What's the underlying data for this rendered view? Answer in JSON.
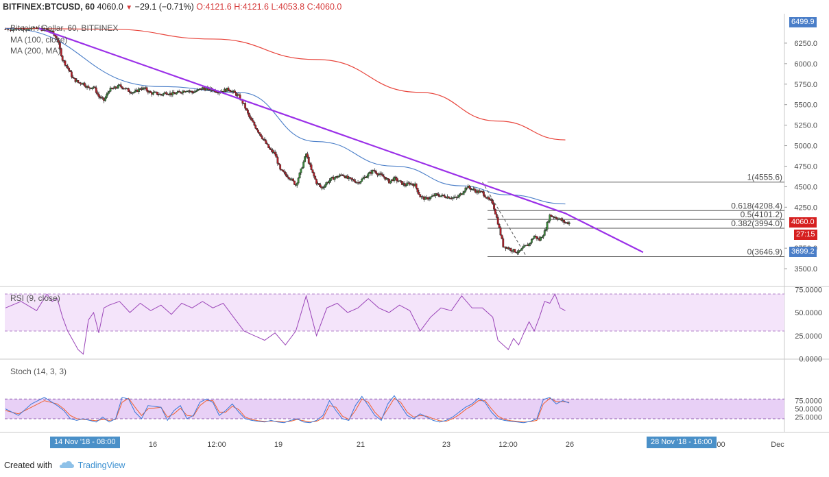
{
  "header": {
    "symbol": "BITFINEX:BTCUSD, 60",
    "last": "4060.0",
    "arrow": "▼",
    "change": "−29.1 (−0.71%)",
    "ohlc_o": "O:4121.6",
    "ohlc_h": "H:4121.6",
    "ohlc_l": "L:4053.8",
    "ohlc_c": "C:4060.0"
  },
  "legend": {
    "title": "Bitcoin / Dollar, 60, BITFINEX",
    "ma100": "MA (100, close)",
    "ma200": "MA (200, MA)"
  },
  "price_axis": {
    "ticks": [
      "6250.0",
      "6000.0",
      "5750.0",
      "5500.0",
      "5250.0",
      "5000.0",
      "4750.0",
      "4500.0",
      "4250.0",
      "3750.0",
      "3500.0"
    ],
    "top_tag": "6499.9",
    "last_tag": "4060.0",
    "countdown_tag": "27:15",
    "low_tag": "3699.2"
  },
  "time_axis": {
    "ticks": [
      "16",
      "12:00",
      "19",
      "21",
      "23",
      "12:00",
      "26",
      "Dec"
    ],
    "partial_tick": ":00",
    "start_tag": "14 Nov '18 - 08:00",
    "end_tag": "28 Nov '18 - 16:00"
  },
  "rsi": {
    "label": "RSI (9, close)",
    "ticks": [
      "75.0000",
      "50.0000",
      "25.0000",
      "0.0000"
    ],
    "upper": 70,
    "lower": 30
  },
  "stoch": {
    "label": "Stoch (14, 3, 3)",
    "ticks": [
      "75.0000",
      "50.0000",
      "25.0000"
    ],
    "upper": 80,
    "lower": 20
  },
  "footer": {
    "created": "Created with",
    "brand": "TradingView"
  },
  "colors": {
    "up": "#3d8a3d",
    "down": "#b3202a",
    "ma100": "#4a7ec8",
    "ma200": "#e8453c",
    "trendline": "#9b30e8",
    "fib": "#555555",
    "rsi": "#9a44b8",
    "stoch_k": "#3a78d8",
    "stoch_d": "#f06030",
    "rsi_band": "#f4e4fa",
    "stoch_band": "#e8d0f6"
  },
  "chart_data": {
    "type": "candlestick",
    "title": "Bitcoin / Dollar, 60, BITFINEX",
    "ylim": [
      3400,
      6550
    ],
    "x_range": [
      "14 Nov '18 - 08:00",
      "28 Nov '18 - 16:00"
    ],
    "close_path": [
      [
        0,
        6420
      ],
      [
        2,
        6420
      ],
      [
        4,
        6430
      ],
      [
        6,
        6425
      ],
      [
        8,
        6410
      ],
      [
        9,
        6380
      ],
      [
        10,
        6300
      ],
      [
        11,
        6050
      ],
      [
        12,
        5950
      ],
      [
        13,
        5820
      ],
      [
        14,
        5770
      ],
      [
        15,
        5760
      ],
      [
        16,
        5700
      ],
      [
        17,
        5720
      ],
      [
        18,
        5600
      ],
      [
        19,
        5550
      ],
      [
        20,
        5680
      ],
      [
        21,
        5700
      ],
      [
        22,
        5730
      ],
      [
        23,
        5700
      ],
      [
        24,
        5660
      ],
      [
        25,
        5650
      ],
      [
        26,
        5700
      ],
      [
        27,
        5690
      ],
      [
        28,
        5640
      ],
      [
        29,
        5640
      ],
      [
        30,
        5620
      ],
      [
        31,
        5650
      ],
      [
        32,
        5630
      ],
      [
        33,
        5640
      ],
      [
        34,
        5660
      ],
      [
        35,
        5680
      ],
      [
        36,
        5650
      ],
      [
        37,
        5670
      ],
      [
        38,
        5700
      ],
      [
        39,
        5690
      ],
      [
        40,
        5680
      ],
      [
        41,
        5660
      ],
      [
        42,
        5670
      ],
      [
        43,
        5690
      ],
      [
        44,
        5650
      ],
      [
        45,
        5600
      ],
      [
        46,
        5500
      ],
      [
        47,
        5350
      ],
      [
        48,
        5250
      ],
      [
        49,
        5150
      ],
      [
        50,
        5050
      ],
      [
        51,
        4950
      ],
      [
        52,
        4900
      ],
      [
        53,
        4700
      ],
      [
        54,
        4650
      ],
      [
        55,
        4600
      ],
      [
        56,
        4520
      ],
      [
        57,
        4700
      ],
      [
        58,
        4900
      ],
      [
        59,
        4700
      ],
      [
        60,
        4550
      ],
      [
        61,
        4480
      ],
      [
        62,
        4550
      ],
      [
        63,
        4600
      ],
      [
        64,
        4620
      ],
      [
        65,
        4650
      ],
      [
        66,
        4600
      ],
      [
        67,
        4580
      ],
      [
        68,
        4550
      ],
      [
        69,
        4600
      ],
      [
        70,
        4650
      ],
      [
        71,
        4700
      ],
      [
        72,
        4650
      ],
      [
        73,
        4620
      ],
      [
        74,
        4560
      ],
      [
        75,
        4600
      ],
      [
        76,
        4560
      ],
      [
        77,
        4520
      ],
      [
        78,
        4540
      ],
      [
        79,
        4520
      ],
      [
        80,
        4380
      ],
      [
        81,
        4350
      ],
      [
        82,
        4370
      ],
      [
        83,
        4400
      ],
      [
        84,
        4390
      ],
      [
        85,
        4380
      ],
      [
        86,
        4370
      ],
      [
        87,
        4360
      ],
      [
        88,
        4420
      ],
      [
        89,
        4500
      ],
      [
        90,
        4470
      ],
      [
        91,
        4440
      ],
      [
        92,
        4430
      ],
      [
        93,
        4350
      ],
      [
        94,
        4300
      ],
      [
        95,
        4060
      ],
      [
        96,
        3780
      ],
      [
        97,
        3750
      ],
      [
        98,
        3720
      ],
      [
        99,
        3700
      ],
      [
        100,
        3760
      ],
      [
        101,
        3800
      ],
      [
        102,
        3900
      ],
      [
        103,
        3850
      ],
      [
        104,
        3950
      ],
      [
        105,
        4150
      ],
      [
        106,
        4130
      ],
      [
        107,
        4100
      ],
      [
        108,
        4060
      ]
    ],
    "ma100": [
      [
        0,
        6430
      ],
      [
        30,
        5720
      ],
      [
        45,
        5650
      ],
      [
        60,
        5050
      ],
      [
        75,
        4750
      ],
      [
        88,
        4510
      ],
      [
        97,
        4400
      ],
      [
        108,
        4290
      ]
    ],
    "ma200": [
      [
        0,
        6430
      ],
      [
        20,
        6420
      ],
      [
        40,
        6300
      ],
      [
        60,
        6050
      ],
      [
        80,
        5650
      ],
      [
        95,
        5300
      ],
      [
        108,
        5070
      ]
    ],
    "trendline": [
      [
        6.5,
        6430
      ],
      [
        108,
        4175
      ],
      [
        123,
        3700
      ]
    ],
    "fibonacci": [
      {
        "label": "1(4555.6)",
        "level": 4555.6
      },
      {
        "label": "0.618(4208.4)",
        "level": 4208.4
      },
      {
        "label": "0.5(4101.2)",
        "level": 4101.2
      },
      {
        "label": "0.382(3994.0)",
        "level": 3994.0
      },
      {
        "label": "0(3646.9)",
        "level": 3646.9
      }
    ],
    "rsi_series": [
      [
        0,
        55
      ],
      [
        3,
        62
      ],
      [
        6,
        52
      ],
      [
        8,
        70
      ],
      [
        9,
        62
      ],
      [
        10,
        65
      ],
      [
        11,
        45
      ],
      [
        12,
        30
      ],
      [
        13,
        20
      ],
      [
        14,
        10
      ],
      [
        15,
        5
      ],
      [
        16,
        42
      ],
      [
        17,
        50
      ],
      [
        18,
        28
      ],
      [
        19,
        55
      ],
      [
        20,
        58
      ],
      [
        22,
        62
      ],
      [
        24,
        50
      ],
      [
        26,
        60
      ],
      [
        28,
        52
      ],
      [
        30,
        58
      ],
      [
        32,
        48
      ],
      [
        34,
        60
      ],
      [
        36,
        55
      ],
      [
        38,
        62
      ],
      [
        40,
        55
      ],
      [
        42,
        60
      ],
      [
        44,
        45
      ],
      [
        46,
        30
      ],
      [
        48,
        25
      ],
      [
        50,
        20
      ],
      [
        52,
        28
      ],
      [
        54,
        15
      ],
      [
        56,
        30
      ],
      [
        58,
        68
      ],
      [
        60,
        25
      ],
      [
        62,
        55
      ],
      [
        64,
        60
      ],
      [
        66,
        50
      ],
      [
        68,
        55
      ],
      [
        70,
        65
      ],
      [
        72,
        55
      ],
      [
        74,
        50
      ],
      [
        76,
        58
      ],
      [
        78,
        52
      ],
      [
        80,
        30
      ],
      [
        82,
        45
      ],
      [
        84,
        55
      ],
      [
        86,
        52
      ],
      [
        88,
        68
      ],
      [
        90,
        55
      ],
      [
        92,
        55
      ],
      [
        94,
        45
      ],
      [
        95,
        20
      ],
      [
        96,
        15
      ],
      [
        97,
        10
      ],
      [
        98,
        22
      ],
      [
        99,
        15
      ],
      [
        100,
        28
      ],
      [
        101,
        40
      ],
      [
        102,
        30
      ],
      [
        103,
        45
      ],
      [
        104,
        62
      ],
      [
        105,
        60
      ],
      [
        106,
        70
      ],
      [
        107,
        55
      ],
      [
        108,
        52
      ]
    ],
    "stoch_k": [
      [
        0,
        50
      ],
      [
        2,
        30
      ],
      [
        4,
        65
      ],
      [
        6,
        85
      ],
      [
        8,
        60
      ],
      [
        9,
        45
      ],
      [
        10,
        20
      ],
      [
        11,
        15
      ],
      [
        12,
        20
      ],
      [
        13,
        15
      ],
      [
        14,
        10
      ],
      [
        15,
        25
      ],
      [
        16,
        10
      ],
      [
        17,
        20
      ],
      [
        18,
        85
      ],
      [
        19,
        80
      ],
      [
        20,
        40
      ],
      [
        21,
        20
      ],
      [
        22,
        60
      ],
      [
        24,
        55
      ],
      [
        25,
        15
      ],
      [
        26,
        45
      ],
      [
        27,
        60
      ],
      [
        28,
        20
      ],
      [
        29,
        30
      ],
      [
        30,
        70
      ],
      [
        31,
        80
      ],
      [
        32,
        70
      ],
      [
        33,
        30
      ],
      [
        34,
        45
      ],
      [
        35,
        65
      ],
      [
        36,
        40
      ],
      [
        37,
        20
      ],
      [
        38,
        15
      ],
      [
        39,
        12
      ],
      [
        40,
        10
      ],
      [
        41,
        15
      ],
      [
        42,
        10
      ],
      [
        43,
        8
      ],
      [
        44,
        15
      ],
      [
        45,
        20
      ],
      [
        46,
        10
      ],
      [
        47,
        8
      ],
      [
        48,
        15
      ],
      [
        49,
        30
      ],
      [
        50,
        75
      ],
      [
        51,
        45
      ],
      [
        52,
        20
      ],
      [
        53,
        15
      ],
      [
        54,
        60
      ],
      [
        55,
        88
      ],
      [
        56,
        60
      ],
      [
        57,
        30
      ],
      [
        58,
        15
      ],
      [
        59,
        65
      ],
      [
        60,
        90
      ],
      [
        61,
        60
      ],
      [
        62,
        30
      ],
      [
        63,
        20
      ],
      [
        64,
        35
      ],
      [
        65,
        25
      ],
      [
        66,
        15
      ],
      [
        67,
        10
      ],
      [
        68,
        15
      ],
      [
        69,
        25
      ],
      [
        70,
        40
      ],
      [
        71,
        55
      ],
      [
        72,
        65
      ],
      [
        73,
        82
      ],
      [
        74,
        70
      ],
      [
        75,
        40
      ],
      [
        76,
        20
      ],
      [
        77,
        15
      ],
      [
        78,
        12
      ],
      [
        79,
        10
      ],
      [
        80,
        8
      ],
      [
        81,
        12
      ],
      [
        82,
        20
      ],
      [
        83,
        78
      ],
      [
        84,
        85
      ],
      [
        85,
        65
      ],
      [
        86,
        75
      ],
      [
        87,
        68
      ]
    ],
    "stoch_d": [
      [
        0,
        45
      ],
      [
        2,
        35
      ],
      [
        4,
        55
      ],
      [
        6,
        75
      ],
      [
        8,
        65
      ],
      [
        9,
        50
      ],
      [
        10,
        30
      ],
      [
        11,
        20
      ],
      [
        12,
        18
      ],
      [
        13,
        16
      ],
      [
        14,
        14
      ],
      [
        15,
        18
      ],
      [
        16,
        15
      ],
      [
        17,
        18
      ],
      [
        18,
        70
      ],
      [
        19,
        82
      ],
      [
        20,
        55
      ],
      [
        21,
        30
      ],
      [
        22,
        50
      ],
      [
        24,
        55
      ],
      [
        25,
        25
      ],
      [
        26,
        35
      ],
      [
        27,
        52
      ],
      [
        28,
        30
      ],
      [
        29,
        28
      ],
      [
        30,
        60
      ],
      [
        31,
        75
      ],
      [
        32,
        75
      ],
      [
        33,
        40
      ],
      [
        34,
        40
      ],
      [
        35,
        58
      ],
      [
        36,
        48
      ],
      [
        37,
        25
      ],
      [
        38,
        18
      ],
      [
        39,
        14
      ],
      [
        40,
        12
      ],
      [
        41,
        13
      ],
      [
        42,
        12
      ],
      [
        43,
        10
      ],
      [
        44,
        12
      ],
      [
        45,
        18
      ],
      [
        46,
        14
      ],
      [
        47,
        10
      ],
      [
        48,
        12
      ],
      [
        49,
        22
      ],
      [
        50,
        60
      ],
      [
        51,
        55
      ],
      [
        52,
        28
      ],
      [
        53,
        18
      ],
      [
        54,
        45
      ],
      [
        55,
        80
      ],
      [
        56,
        70
      ],
      [
        57,
        40
      ],
      [
        58,
        20
      ],
      [
        59,
        50
      ],
      [
        60,
        82
      ],
      [
        61,
        70
      ],
      [
        62,
        40
      ],
      [
        63,
        25
      ],
      [
        64,
        30
      ],
      [
        65,
        28
      ],
      [
        66,
        20
      ],
      [
        67,
        14
      ],
      [
        68,
        12
      ],
      [
        69,
        20
      ],
      [
        70,
        32
      ],
      [
        71,
        48
      ],
      [
        72,
        60
      ],
      [
        73,
        75
      ],
      [
        74,
        75
      ],
      [
        75,
        50
      ],
      [
        76,
        28
      ],
      [
        77,
        18
      ],
      [
        78,
        14
      ],
      [
        79,
        12
      ],
      [
        80,
        10
      ],
      [
        81,
        11
      ],
      [
        82,
        15
      ],
      [
        83,
        65
      ],
      [
        84,
        82
      ],
      [
        85,
        72
      ],
      [
        86,
        72
      ],
      [
        87,
        70
      ]
    ]
  }
}
